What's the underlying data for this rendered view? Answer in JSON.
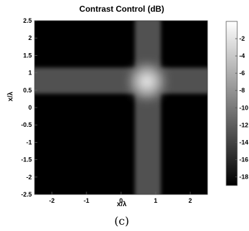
{
  "chart_data": {
    "type": "heatmap",
    "title": "Contrast Control (dB)",
    "xlabel": "x/λ",
    "ylabel": "x/λ",
    "xlim": [
      -2.5,
      2.5
    ],
    "ylim": [
      -2.5,
      2.5
    ],
    "x_ticks": [
      "-2",
      "-1",
      "0",
      "1",
      "2"
    ],
    "x_tick_values": [
      -2,
      -1,
      0,
      1,
      2
    ],
    "y_ticks": [
      "2.5",
      "2",
      "1.5",
      "1",
      "0.5",
      "0",
      "-0.5",
      "-1",
      "-1.5",
      "-2",
      "-2.5"
    ],
    "y_tick_values": [
      2.5,
      2,
      1.5,
      1,
      0.5,
      0,
      -0.5,
      -1,
      -1.5,
      -2,
      -2.5
    ],
    "colorbar": {
      "range": [
        -19,
        0
      ],
      "ticks": [
        "-2",
        "-4",
        "-6",
        "-8",
        "-10",
        "-12",
        "-14",
        "-16",
        "-18"
      ],
      "tick_values": [
        -2,
        -4,
        -6,
        -8,
        -10,
        -12,
        -14,
        -16,
        -18
      ],
      "colormap": "gray"
    },
    "features": [
      {
        "kind": "spot",
        "x": 0.75,
        "y": 0.75,
        "peak_db": -2
      },
      {
        "kind": "horizontal_band",
        "y_range": [
          0.4,
          1.15
        ],
        "level_db": -13
      },
      {
        "kind": "vertical_band",
        "x_range": [
          0.4,
          1.15
        ],
        "level_db": -13
      }
    ],
    "background_db": -19,
    "caption": "(c)"
  }
}
